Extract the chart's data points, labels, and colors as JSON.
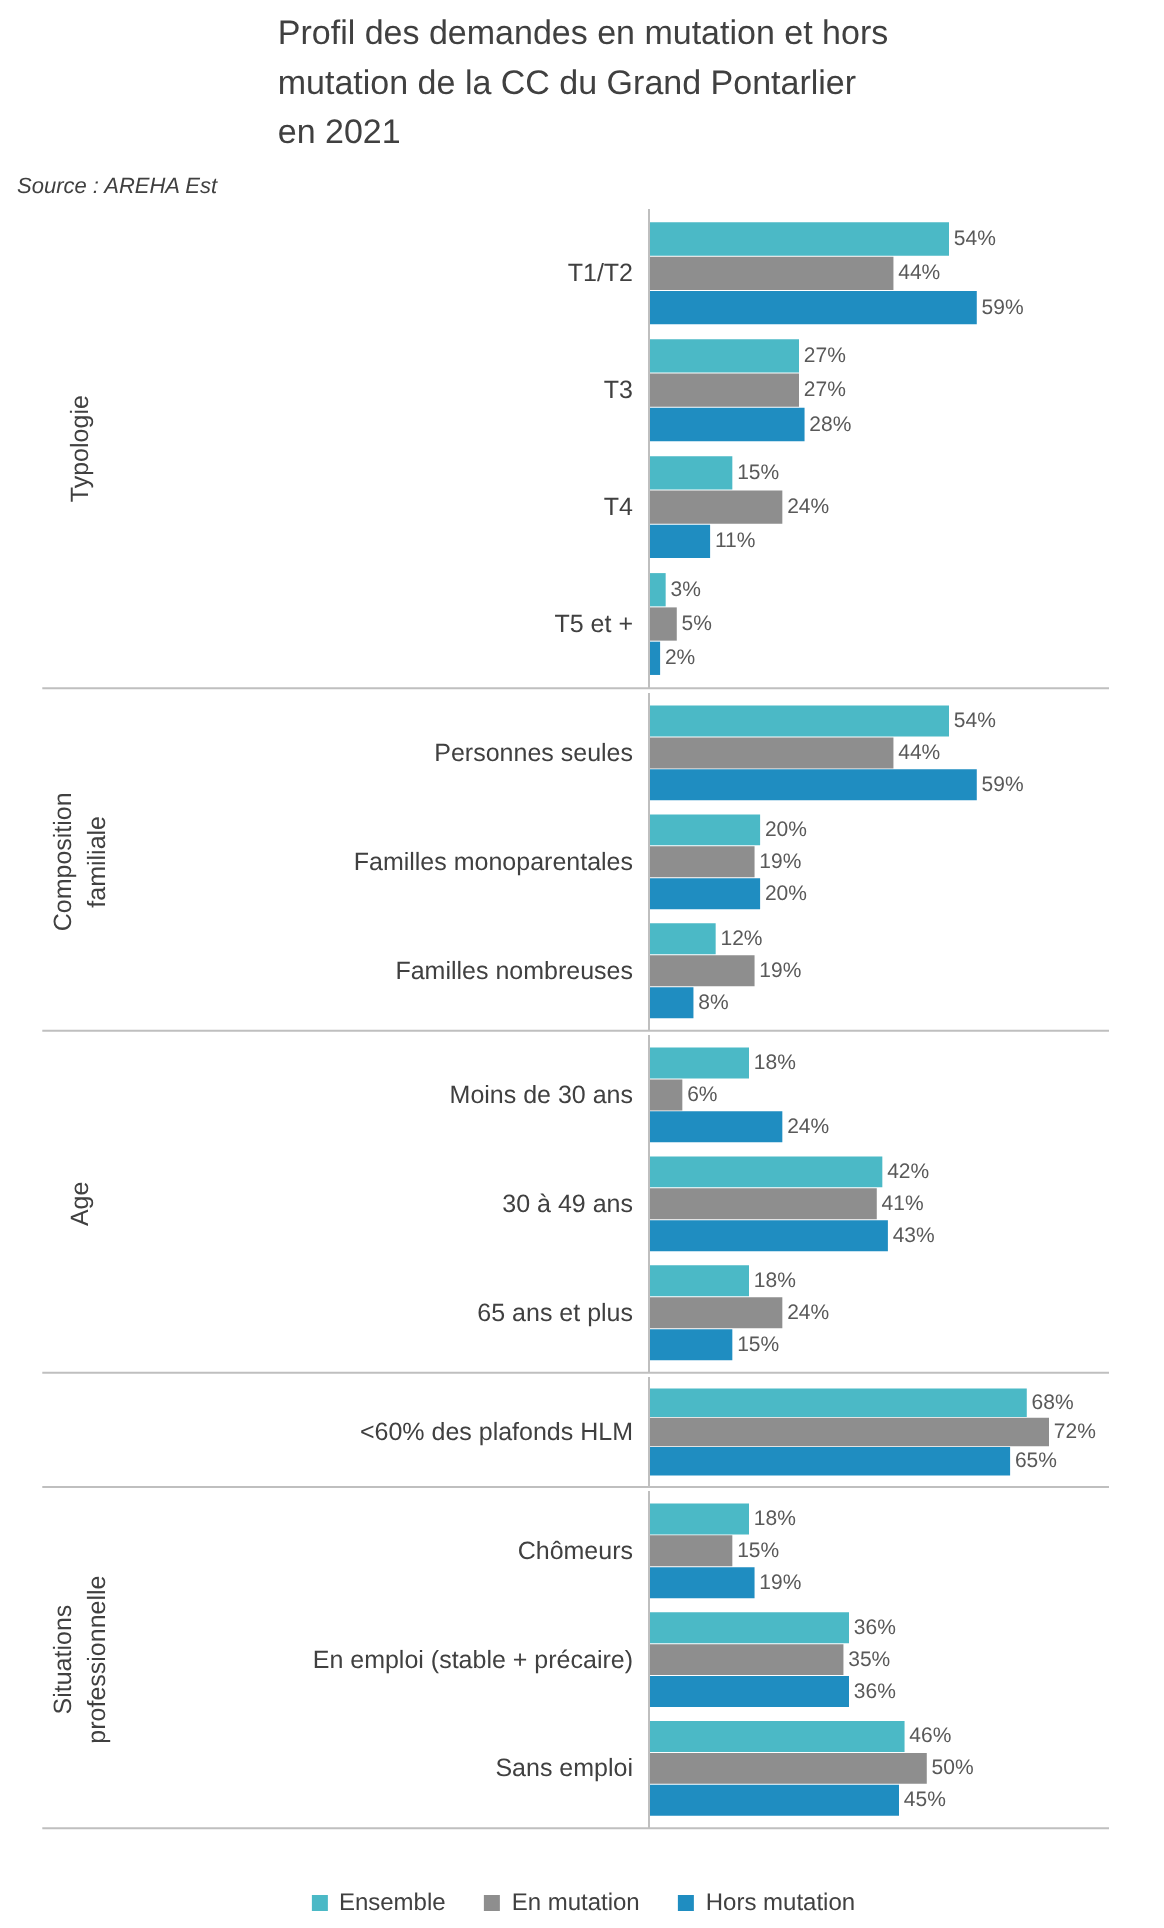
{
  "chart_data": [
    {
      "type": "bar",
      "orientation": "horizontal",
      "title": "Profil des demandes en mutation et hors mutation de la CC du Grand Pontarlier en 2021",
      "annotations": [
        "Source : AREHA Est"
      ],
      "ylabel": "Typologie",
      "tick_labels": "y",
      "categories": [
        "T1/T2",
        "T3",
        "T4",
        "T5 et +"
      ],
      "series": [
        {
          "color": "#4bb9c6",
          "values": [
            54,
            27,
            15,
            3
          ],
          "value_labels": [
            "54%",
            "27%",
            "15%",
            "3%"
          ]
        },
        {
          "color": "#8e8e8e",
          "values": [
            44,
            27,
            24,
            5
          ],
          "value_labels": [
            "44%",
            "27%",
            "24%",
            "5%"
          ]
        },
        {
          "color": "#1f8dc1",
          "values": [
            59,
            28,
            11,
            2
          ],
          "value_labels": [
            "59%",
            "28%",
            "11%",
            "2%"
          ]
        }
      ]
    },
    {
      "type": "bar",
      "orientation": "horizontal",
      "ylabel": "Composition familiale",
      "tick_labels": "y",
      "categories": [
        "Personnes seules",
        "Familles monoparentales",
        "Familles nombreuses"
      ],
      "series": [
        {
          "color": "#4bb9c6",
          "values": [
            54,
            20,
            12
          ],
          "value_labels": [
            "54%",
            "20%",
            "12%"
          ]
        },
        {
          "color": "#8e8e8e",
          "values": [
            44,
            19,
            19
          ],
          "value_labels": [
            "44%",
            "19%",
            "19%"
          ]
        },
        {
          "color": "#1f8dc1",
          "values": [
            59,
            20,
            8
          ],
          "value_labels": [
            "59%",
            "20%",
            "8%"
          ]
        }
      ]
    },
    {
      "type": "bar",
      "orientation": "horizontal",
      "ylabel": "Age",
      "tick_labels": "y",
      "categories": [
        "Moins de 30 ans",
        "30 à 49 ans",
        "65 ans et plus"
      ],
      "series": [
        {
          "color": "#4bb9c6",
          "values": [
            18,
            42,
            18
          ],
          "value_labels": [
            "18%",
            "42%",
            "18%"
          ]
        },
        {
          "color": "#8e8e8e",
          "values": [
            6,
            41,
            24
          ],
          "value_labels": [
            "6%",
            "41%",
            "24%"
          ]
        },
        {
          "color": "#1f8dc1",
          "values": [
            24,
            43,
            15
          ],
          "value_labels": [
            "24%",
            "43%",
            "15%"
          ]
        }
      ]
    },
    {
      "type": "bar",
      "orientation": "horizontal",
      "tick_labels": "y",
      "categories": [
        "<60% des plafonds HLM"
      ],
      "series": [
        {
          "color": "#4bb9c6",
          "values": [
            68
          ],
          "value_labels": [
            "68%"
          ]
        },
        {
          "color": "#8e8e8e",
          "values": [
            72
          ],
          "value_labels": [
            "72%"
          ]
        },
        {
          "color": "#1f8dc1",
          "values": [
            65
          ],
          "value_labels": [
            "65%"
          ]
        }
      ]
    },
    {
      "type": "bar",
      "orientation": "horizontal",
      "ylabel": "Situations professionnelle",
      "tick_labels": "y",
      "legend": "bottom",
      "categories": [
        "Chômeurs",
        "En emploi (stable + précaire)",
        "Sans emploi"
      ],
      "series": [
        {
          "name": "Ensemble",
          "color": "#4bb9c6",
          "values": [
            18,
            36,
            46
          ],
          "value_labels": [
            "18%",
            "36%",
            "46%"
          ]
        },
        {
          "name": "En mutation",
          "color": "#8e8e8e",
          "values": [
            15,
            35,
            50
          ],
          "value_labels": [
            "15%",
            "35%",
            "50%"
          ]
        },
        {
          "name": "Hors mutation",
          "color": "#1f8dc1",
          "values": [
            19,
            36,
            45
          ],
          "value_labels": [
            "19%",
            "36%",
            "45%"
          ]
        }
      ]
    }
  ]
}
